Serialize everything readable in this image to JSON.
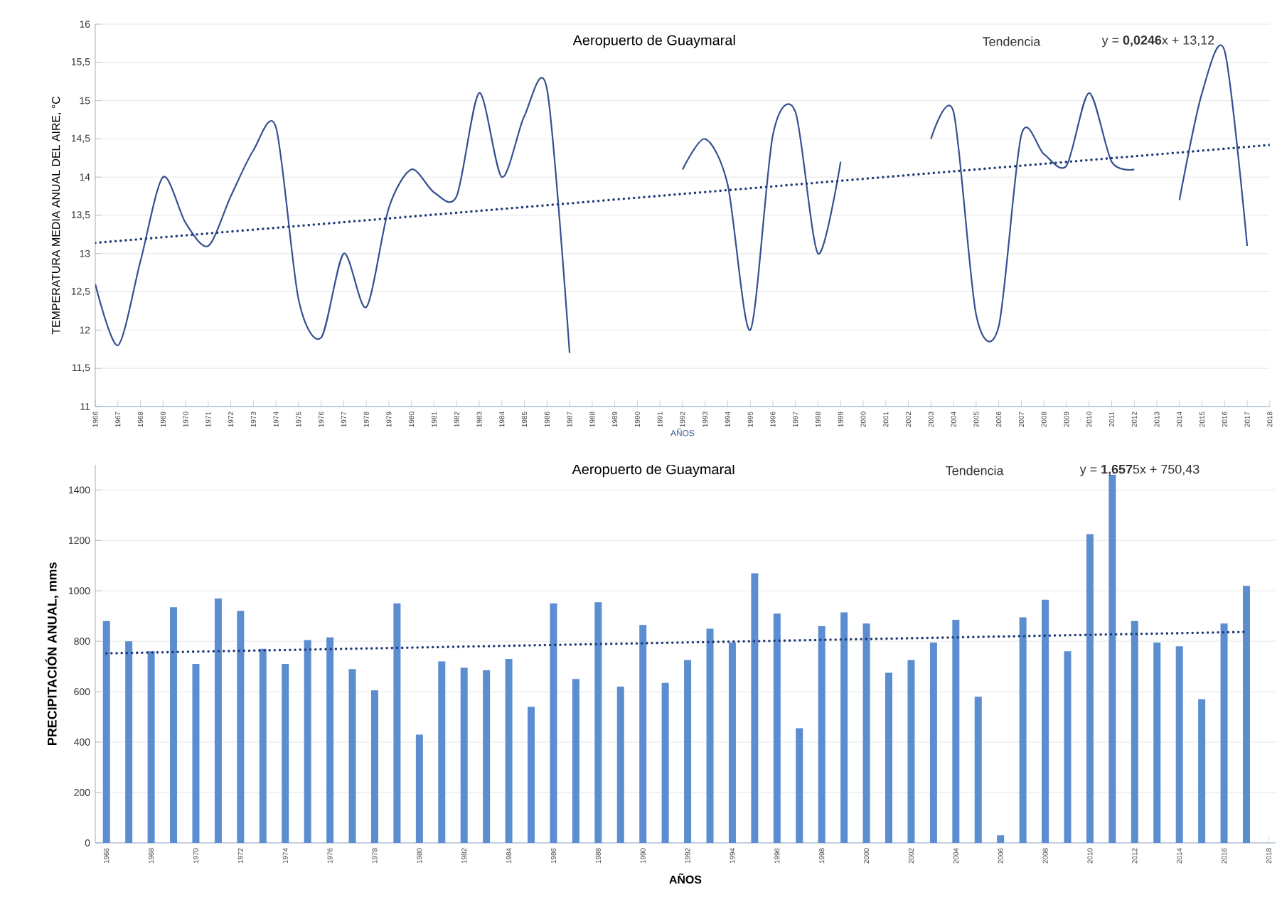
{
  "chart_data": [
    {
      "type": "line",
      "title": "Aeropuerto de Guaymaral",
      "xlabel": "AÑOS",
      "ylabel": "TEMPERATURA MEDIA ANUAL DEL AIRE, °C",
      "annotations": [
        "Tendencia",
        "y = **0,0246**x + 13,12"
      ],
      "x": [
        1966,
        1967,
        1968,
        1969,
        1970,
        1971,
        1972,
        1973,
        1974,
        1975,
        1976,
        1977,
        1978,
        1979,
        1980,
        1981,
        1982,
        1983,
        1984,
        1985,
        1986,
        1987,
        1988,
        1989,
        1990,
        1991,
        1992,
        1993,
        1994,
        1995,
        1996,
        1997,
        1998,
        1999,
        2000,
        2001,
        2002,
        2003,
        2004,
        2005,
        2006,
        2007,
        2008,
        2009,
        2010,
        2011,
        2012,
        2013,
        2014,
        2015,
        2016,
        2017
      ],
      "series": [
        {
          "color": "#34508f",
          "values": [
            12.6,
            11.8,
            12.9,
            14.0,
            13.4,
            13.1,
            13.75,
            14.35,
            14.65,
            12.4,
            11.9,
            13.0,
            12.3,
            13.6,
            14.1,
            13.8,
            13.75,
            15.1,
            14.0,
            14.8,
            15.15,
            11.7,
            null,
            null,
            null,
            null,
            14.1,
            14.5,
            13.9,
            12.0,
            14.55,
            14.85,
            13.0,
            14.2,
            null,
            null,
            null,
            14.5,
            14.85,
            12.2,
            12.05,
            14.55,
            14.3,
            14.15,
            15.1,
            14.2,
            14.1,
            null,
            13.7,
            15.1,
            15.65,
            13.1
          ]
        },
        {
          "type": "line",
          "line_style": "dotted",
          "color": "#1f3a78",
          "x": [
            1966,
            2018
          ],
          "values": [
            13.14,
            14.42
          ]
        }
      ],
      "xlim": [
        1966,
        2018
      ],
      "ylim": [
        11,
        16
      ],
      "xticks": [
        1966,
        1967,
        1968,
        1969,
        1970,
        1971,
        1972,
        1973,
        1974,
        1975,
        1976,
        1977,
        1978,
        1979,
        1980,
        1981,
        1982,
        1983,
        1984,
        1985,
        1986,
        1987,
        1988,
        1989,
        1990,
        1991,
        1992,
        1993,
        1994,
        1995,
        1996,
        1997,
        1998,
        1999,
        2000,
        2001,
        2002,
        2003,
        2004,
        2005,
        2006,
        2007,
        2008,
        2009,
        2010,
        2011,
        2012,
        2013,
        2014,
        2015,
        2016,
        2017,
        2018
      ],
      "yticks": [
        11,
        {
          "value": 11.5,
          "label": "11,5"
        },
        12,
        {
          "value": 12.5,
          "label": "12,5"
        },
        13,
        {
          "value": 13.5,
          "label": "13,5"
        },
        14,
        {
          "value": 14.5,
          "label": "14,5"
        },
        15,
        {
          "value": 15.5,
          "label": "15,5"
        },
        16
      ],
      "grid": "y"
    },
    {
      "type": "bar",
      "title": "Aeropuerto de Guaymaral",
      "xlabel": "AÑOS",
      "ylabel": "PRECIPITACIÓN ANUAL, mms",
      "annotations": [
        "Tendencia",
        "y = **1,657**5x + 750,43"
      ],
      "x": [
        1966,
        1967,
        1968,
        1969,
        1970,
        1971,
        1972,
        1973,
        1974,
        1975,
        1976,
        1977,
        1978,
        1979,
        1980,
        1981,
        1982,
        1983,
        1984,
        1985,
        1986,
        1987,
        1988,
        1989,
        1990,
        1991,
        1992,
        1993,
        1994,
        1995,
        1996,
        1997,
        1998,
        1999,
        2000,
        2001,
        2002,
        2003,
        2004,
        2005,
        2006,
        2007,
        2008,
        2009,
        2010,
        2011,
        2012,
        2013,
        2014,
        2015,
        2016,
        2017
      ],
      "series": [
        {
          "color": "#5b8dd0",
          "values": [
            880,
            800,
            760,
            935,
            710,
            970,
            920,
            770,
            710,
            805,
            815,
            690,
            605,
            950,
            430,
            720,
            695,
            685,
            730,
            540,
            950,
            650,
            955,
            620,
            865,
            635,
            725,
            850,
            795,
            1070,
            910,
            455,
            860,
            915,
            870,
            675,
            725,
            795,
            885,
            580,
            30,
            895,
            965,
            760,
            1225,
            1460,
            880,
            795,
            780,
            570,
            870,
            1020
          ]
        },
        {
          "type": "line",
          "line_style": "dotted",
          "color": "#1f3a78",
          "x": [
            1966,
            2017
          ],
          "values": [
            752,
            837
          ]
        }
      ],
      "xlim": [
        1965.5,
        2018.3
      ],
      "ylim": [
        0,
        1500
      ],
      "xticks": [
        1966,
        1968,
        1970,
        1972,
        1974,
        1976,
        1978,
        1980,
        1982,
        1984,
        1986,
        1988,
        1990,
        1992,
        1994,
        1996,
        1998,
        2000,
        2002,
        2004,
        2006,
        2008,
        2010,
        2012,
        2014,
        2016,
        2018
      ],
      "yticks": [
        0,
        200,
        400,
        600,
        800,
        1000,
        1200,
        1400
      ],
      "grid": "y"
    }
  ]
}
